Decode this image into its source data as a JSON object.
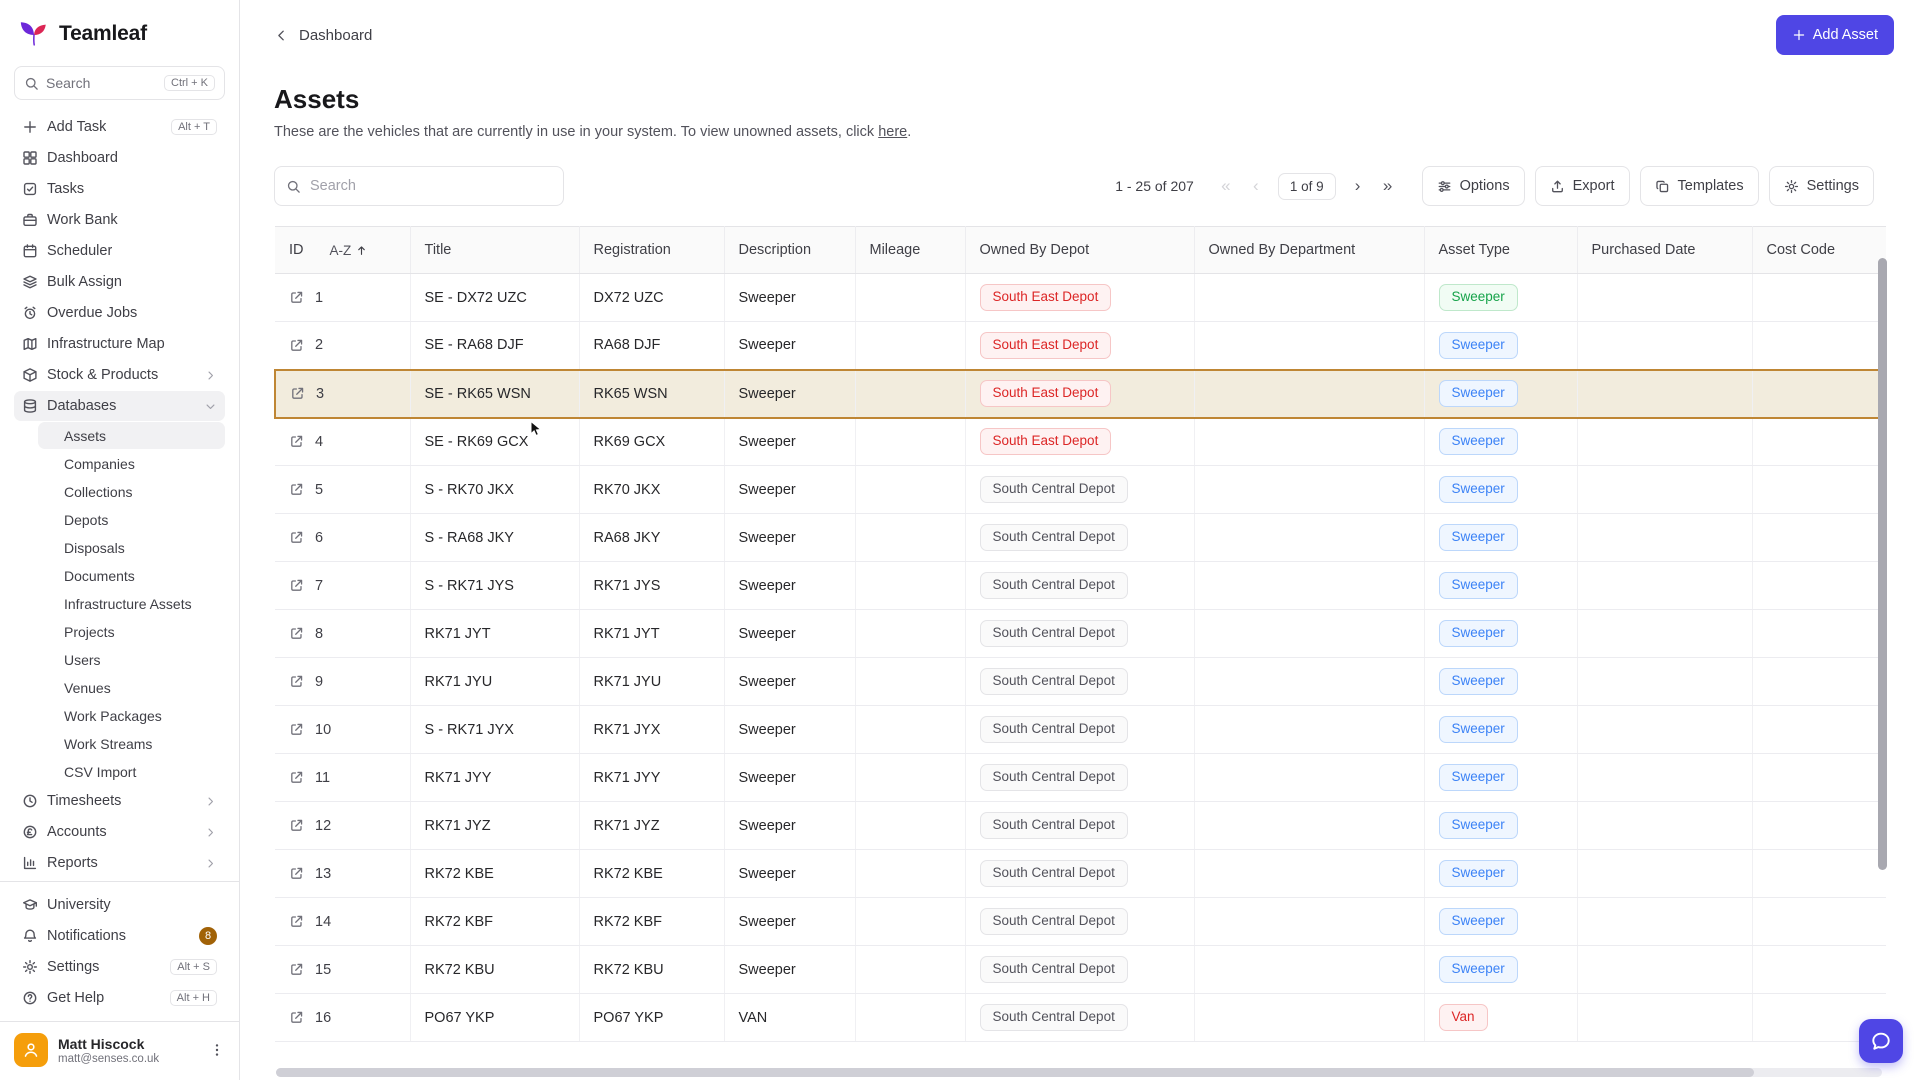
{
  "app": {
    "name": "Teamleaf"
  },
  "sidebar": {
    "search": {
      "placeholder": "Search",
      "shortcut": "Ctrl + K"
    },
    "main_items": [
      {
        "label": "Add Task",
        "icon": "plus",
        "shortcut": "Alt + T"
      },
      {
        "label": "Dashboard",
        "icon": "dashboard"
      },
      {
        "label": "Tasks",
        "icon": "tasks"
      },
      {
        "label": "Work Bank",
        "icon": "briefcase"
      },
      {
        "label": "Scheduler",
        "icon": "calendar"
      },
      {
        "label": "Bulk Assign",
        "icon": "layers"
      },
      {
        "label": "Overdue Jobs",
        "icon": "alarm"
      },
      {
        "label": "Infrastructure Map",
        "icon": "map"
      },
      {
        "label": "Stock & Products",
        "icon": "box",
        "chevron": "right"
      },
      {
        "label": "Databases",
        "icon": "database",
        "chevron": "down",
        "active": true
      }
    ],
    "database_items": [
      "Assets",
      "Companies",
      "Collections",
      "Depots",
      "Disposals",
      "Documents",
      "Infrastructure Assets",
      "Projects",
      "Users",
      "Venues",
      "Work Packages",
      "Work Streams",
      "CSV Import"
    ],
    "active_sub_item": "Assets",
    "group_items": [
      {
        "label": "Timesheets",
        "icon": "clock",
        "chevron": "right"
      },
      {
        "label": "Accounts",
        "icon": "currency",
        "chevron": "right"
      },
      {
        "label": "Reports",
        "icon": "chart",
        "chevron": "right"
      }
    ],
    "footer_items": [
      {
        "label": "University",
        "icon": "graduation"
      },
      {
        "label": "Notifications",
        "icon": "bell",
        "badge": "8"
      },
      {
        "label": "Settings",
        "icon": "gear",
        "shortcut": "Alt + S"
      },
      {
        "label": "Get Help",
        "icon": "help",
        "shortcut": "Alt + H"
      }
    ],
    "user": {
      "name": "Matt Hiscock",
      "email": "matt@senses.co.uk"
    }
  },
  "header": {
    "breadcrumb": "Dashboard",
    "add_asset_label": "Add Asset"
  },
  "page": {
    "title": "Assets",
    "subtitle_before": "These are the vehicles that are currently in use in your system. To view unowned assets, click ",
    "subtitle_link": "here",
    "subtitle_after": "."
  },
  "toolbar": {
    "search_placeholder": "Search",
    "pagination": {
      "range": "1 - 25 of 207",
      "page": "1 of 9",
      "first": "«",
      "prev": "‹",
      "next": "›",
      "last": "»"
    },
    "buttons": [
      {
        "label": "Options",
        "icon": "sliders"
      },
      {
        "label": "Export",
        "icon": "export"
      },
      {
        "label": "Templates",
        "icon": "templates"
      },
      {
        "label": "Settings",
        "icon": "gear"
      }
    ]
  },
  "table": {
    "columns": [
      "ID",
      "Title",
      "Registration",
      "Description",
      "Mileage",
      "Owned By Depot",
      "Owned By Department",
      "Asset Type",
      "Purchased Date",
      "Cost Code"
    ],
    "sort_label": "A-Z",
    "rows": [
      {
        "id": "1",
        "title": "SE - DX72 UZC",
        "registration": "DX72 UZC",
        "description": "Sweeper",
        "depot": "South East Depot",
        "depot_color": "red",
        "asset_type": "Sweeper",
        "type_color": "green"
      },
      {
        "id": "2",
        "title": "SE - RA68 DJF",
        "registration": "RA68 DJF",
        "description": "Sweeper",
        "depot": "South East Depot",
        "depot_color": "red",
        "asset_type": "Sweeper",
        "type_color": "blue"
      },
      {
        "id": "3",
        "title": "SE - RK65 WSN",
        "registration": "RK65 WSN",
        "description": "Sweeper",
        "depot": "South East Depot",
        "depot_color": "red",
        "asset_type": "Sweeper",
        "type_color": "blue",
        "selected": true
      },
      {
        "id": "4",
        "title": "SE - RK69 GCX",
        "registration": "RK69 GCX",
        "description": "Sweeper",
        "depot": "South East Depot",
        "depot_color": "red",
        "asset_type": "Sweeper",
        "type_color": "blue"
      },
      {
        "id": "5",
        "title": "S - RK70 JKX",
        "registration": "RK70 JKX",
        "description": "Sweeper",
        "depot": "South Central Depot",
        "depot_color": "gray",
        "asset_type": "Sweeper",
        "type_color": "blue"
      },
      {
        "id": "6",
        "title": "S - RA68 JKY",
        "registration": "RA68 JKY",
        "description": "Sweeper",
        "depot": "South Central Depot",
        "depot_color": "gray",
        "asset_type": "Sweeper",
        "type_color": "blue"
      },
      {
        "id": "7",
        "title": "S - RK71 JYS",
        "registration": "RK71 JYS",
        "description": "Sweeper",
        "depot": "South Central Depot",
        "depot_color": "gray",
        "asset_type": "Sweeper",
        "type_color": "blue"
      },
      {
        "id": "8",
        "title": "RK71 JYT",
        "registration": "RK71 JYT",
        "description": "Sweeper",
        "depot": "South Central Depot",
        "depot_color": "gray",
        "asset_type": "Sweeper",
        "type_color": "blue"
      },
      {
        "id": "9",
        "title": "RK71 JYU",
        "registration": "RK71 JYU",
        "description": "Sweeper",
        "depot": "South Central Depot",
        "depot_color": "gray",
        "asset_type": "Sweeper",
        "type_color": "blue"
      },
      {
        "id": "10",
        "title": "S - RK71 JYX",
        "registration": "RK71 JYX",
        "description": "Sweeper",
        "depot": "South Central Depot",
        "depot_color": "gray",
        "asset_type": "Sweeper",
        "type_color": "blue"
      },
      {
        "id": "11",
        "title": "RK71 JYY",
        "registration": "RK71 JYY",
        "description": "Sweeper",
        "depot": "South Central Depot",
        "depot_color": "gray",
        "asset_type": "Sweeper",
        "type_color": "blue"
      },
      {
        "id": "12",
        "title": "RK71 JYZ",
        "registration": "RK71 JYZ",
        "description": "Sweeper",
        "depot": "South Central Depot",
        "depot_color": "gray",
        "asset_type": "Sweeper",
        "type_color": "blue"
      },
      {
        "id": "13",
        "title": "RK72 KBE",
        "registration": "RK72 KBE",
        "description": "Sweeper",
        "depot": "South Central Depot",
        "depot_color": "gray",
        "asset_type": "Sweeper",
        "type_color": "blue"
      },
      {
        "id": "14",
        "title": "RK72 KBF",
        "registration": "RK72 KBF",
        "description": "Sweeper",
        "depot": "South Central Depot",
        "depot_color": "gray",
        "asset_type": "Sweeper",
        "type_color": "blue"
      },
      {
        "id": "15",
        "title": "RK72 KBU",
        "registration": "RK72 KBU",
        "description": "Sweeper",
        "depot": "South Central Depot",
        "depot_color": "gray",
        "asset_type": "Sweeper",
        "type_color": "blue"
      },
      {
        "id": "16",
        "title": "PO67 YKP",
        "registration": "PO67 YKP",
        "description": "VAN",
        "depot": "South Central Depot",
        "depot_color": "gray",
        "asset_type": "Van",
        "type_color": "red"
      }
    ]
  },
  "colors": {
    "primary": "#4f46e5",
    "highlight_border": "#bf8634",
    "highlight_bg": "#f2ecdd",
    "badge_red": "#dc2626",
    "badge_blue": "#3b82f6",
    "badge_green": "#16a34a",
    "badge_gray": "#52525b",
    "logo_purple": "#6d28d9",
    "logo_red": "#dc2655",
    "avatar_bg": "#f59e0b"
  }
}
